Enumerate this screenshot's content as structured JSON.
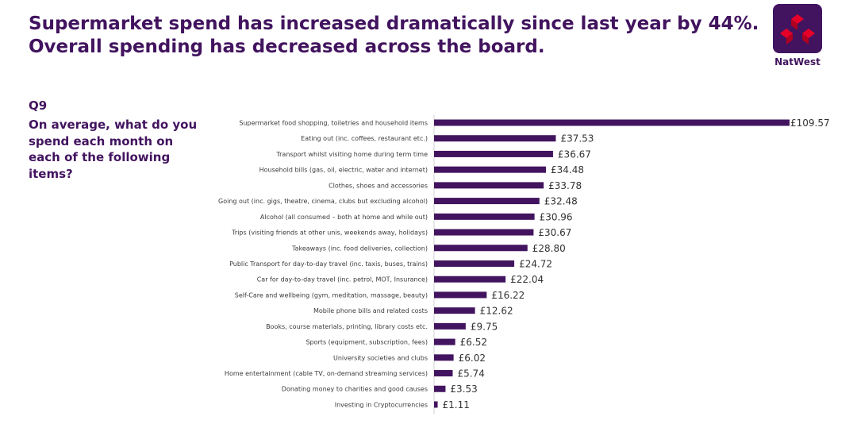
{
  "headline": {
    "line1": "Supermarket spend has increased dramatically since last year by 44%.",
    "line2": "Overall spending has decreased across the board."
  },
  "logo": {
    "name": "NatWest",
    "icon": "natwest-cubes-icon",
    "color": "#42145f",
    "accent": "#e60028"
  },
  "question": {
    "number": "Q9",
    "text": "On average, what do you spend each month on each of the following items?"
  },
  "chart_data": {
    "type": "bar",
    "orientation": "horizontal",
    "categories": [
      "Supermarket food shopping, toiletries and household items",
      "Eating out (inc. coffees, restaurant etc.)",
      "Transport whilst visiting home during term time",
      "Household bills (gas, oil, electric, water and internet)",
      "Clothes, shoes and accessories",
      "Going out (inc. gigs, theatre, cinema, clubs but excluding alcohol)",
      "Alcohol (all consumed – both at home and while out)",
      "Trips (visiting friends at other unis, weekends away, holidays)",
      "Takeaways (inc. food deliveries, collection)",
      "Public Transport for day-to-day travel (inc. taxis, buses, trains)",
      "Car for day-to-day travel (inc. petrol, MOT, Insurance)",
      "Self-Care and wellbeing (gym, meditation, massage, beauty)",
      "Mobile phone bills and related costs",
      "Books, course materials, printing, library costs etc.",
      "Sports (equipment, subscription, fees)",
      "University societies and clubs",
      "Home entertainment (cable TV, on-demand streaming services)",
      "Donating money to charities and good causes",
      "Investing in Cryptocurrencies"
    ],
    "values": [
      109.57,
      37.53,
      36.67,
      34.48,
      33.78,
      32.48,
      30.96,
      30.67,
      28.8,
      24.72,
      22.04,
      16.22,
      12.62,
      9.75,
      6.52,
      6.02,
      5.74,
      3.53,
      1.11
    ],
    "labels": [
      "£109.57",
      "£37.53",
      "£36.67",
      "£34.48",
      "£33.78",
      "£32.48",
      "£30.96",
      "£30.67",
      "£28.80",
      "£24.72",
      "£22.04",
      "£16.22",
      "£12.62",
      "£9.75",
      "£6.52",
      "£6.02",
      "£5.74",
      "£3.53",
      "£1.11"
    ],
    "xlim": [
      0,
      109.57
    ],
    "bar_color": "#42145f",
    "title": "",
    "xlabel": "",
    "ylabel": "",
    "grid": false
  }
}
